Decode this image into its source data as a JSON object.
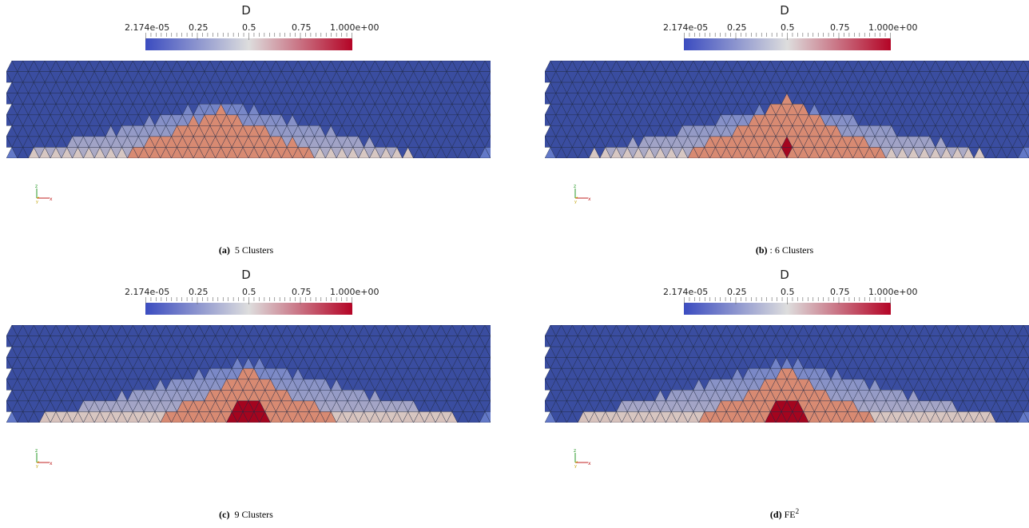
{
  "colorbar": {
    "title": "D",
    "tick_labels": [
      "2.174e-05",
      "0.25",
      "0.5",
      "0.75",
      "1.000e+00"
    ],
    "colormap": [
      "#3b4cc0",
      "#dddddd",
      "#b40426"
    ]
  },
  "axes_labels": {
    "z": "z",
    "y": "y",
    "x": "x"
  },
  "panels": [
    {
      "label": "(a)",
      "text": "5 Clusters",
      "sup": ""
    },
    {
      "label": "(b)",
      "text": ": 6 Clusters",
      "sup": ""
    },
    {
      "label": "(c)",
      "text": "9 Clusters",
      "sup": ""
    },
    {
      "label": "(d)",
      "text": "FE",
      "sup": "2"
    }
  ],
  "colors": {
    "background_mesh": "#3a4da0",
    "mesh_edge": "#1b2540",
    "low_damage": "#5b73c8",
    "mid_damage": "#d7c8c4",
    "high_damage": "#d88a72",
    "max_damage": "#a4051f"
  }
}
